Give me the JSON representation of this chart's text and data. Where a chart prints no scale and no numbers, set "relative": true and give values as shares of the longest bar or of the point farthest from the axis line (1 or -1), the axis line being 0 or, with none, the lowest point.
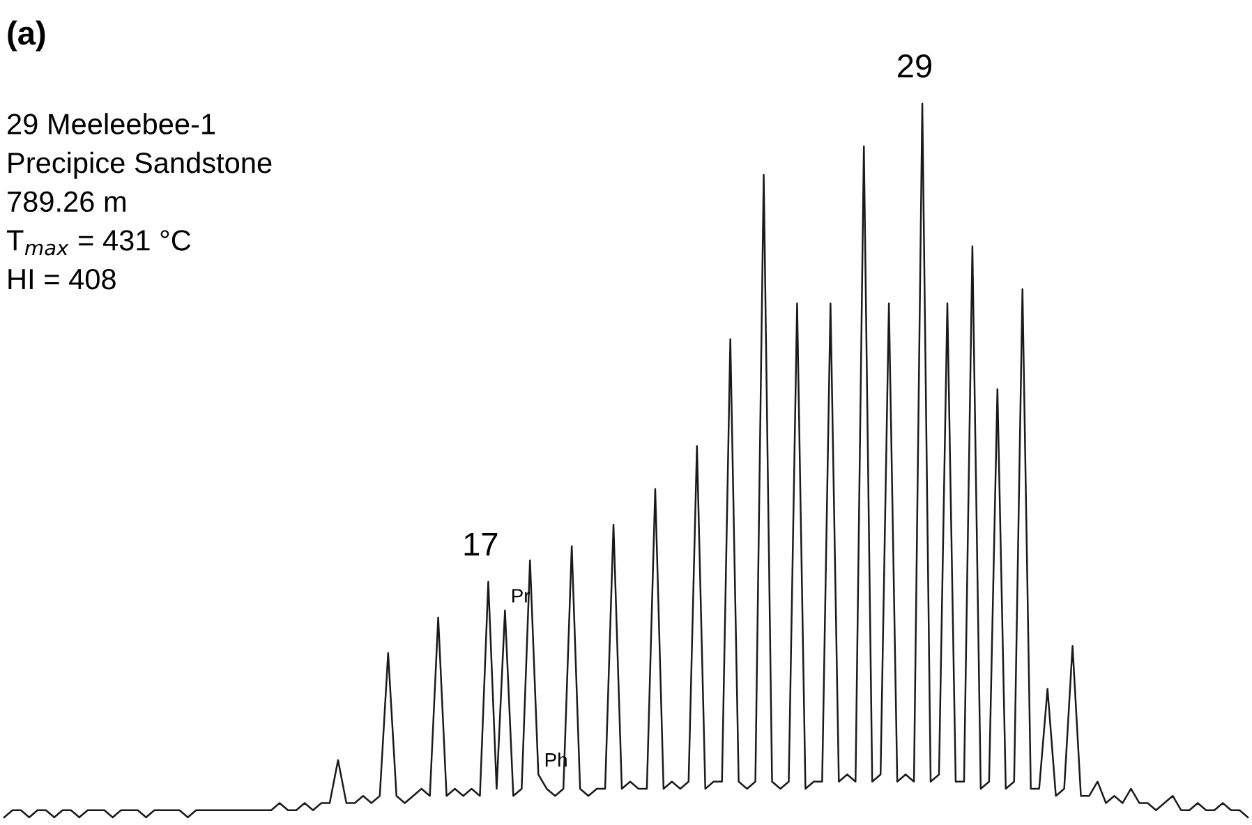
{
  "chart_data": {
    "type": "line",
    "relative": true,
    "color": "#1a1a1a",
    "marker": "none",
    "line_style": "solid",
    "grid": false,
    "legend": false,
    "tick_labels": false,
    "categories": [
      null,
      null,
      null,
      null,
      null,
      null,
      null,
      null,
      null,
      null,
      null,
      null,
      null,
      null,
      null,
      null,
      null,
      null,
      null,
      null,
      null,
      null,
      null,
      null,
      null,
      null,
      null,
      null,
      null,
      null,
      null,
      null,
      null,
      null,
      null,
      null,
      null,
      null,
      null,
      null,
      null,
      null,
      null,
      null,
      null,
      null,
      null,
      null,
      null,
      null,
      null,
      null,
      null,
      null,
      null,
      null,
      null,
      null,
      null,
      null,
      null,
      null,
      null,
      null,
      null,
      null,
      null,
      null,
      null,
      null,
      null,
      null,
      null,
      null,
      null,
      null,
      null,
      null,
      null,
      null,
      null,
      null,
      null,
      null,
      null,
      null,
      null,
      null,
      null,
      null,
      null,
      null,
      null,
      null,
      null,
      null,
      null,
      null,
      null,
      null,
      null,
      null,
      null,
      null,
      null,
      null,
      null,
      null,
      null,
      null,
      null,
      null,
      null,
      null,
      null,
      null,
      null,
      null,
      null,
      null,
      null,
      null,
      null,
      null,
      null,
      null,
      null,
      null,
      null,
      null,
      null,
      null,
      null,
      null,
      null,
      null,
      null,
      null,
      null,
      null,
      null,
      null,
      null,
      null,
      null,
      null,
      null,
      null,
      null,
      null
    ],
    "values": [
      0,
      0.01,
      0.01,
      0,
      0.01,
      0.01,
      0,
      0.01,
      0.01,
      0,
      0.01,
      0.01,
      0.01,
      0,
      0.01,
      0.01,
      0.01,
      0,
      0.01,
      0.01,
      0.01,
      0.01,
      0,
      0.01,
      0.01,
      0.01,
      0.01,
      0.01,
      0.01,
      0.01,
      0.01,
      0.01,
      0.01,
      0.02,
      0.01,
      0.01,
      0.02,
      0.01,
      0.02,
      0.02,
      0.08,
      0.02,
      0.02,
      0.03,
      0.02,
      0.03,
      0.23,
      0.03,
      0.02,
      0.03,
      0.04,
      0.03,
      0.28,
      0.03,
      0.04,
      0.03,
      0.04,
      0.03,
      0.33,
      0.04,
      0.29,
      0.03,
      0.04,
      0.36,
      0.06,
      0.04,
      0.03,
      0.04,
      0.38,
      0.04,
      0.03,
      0.04,
      0.04,
      0.41,
      0.04,
      0.05,
      0.04,
      0.04,
      0.46,
      0.04,
      0.05,
      0.04,
      0.05,
      0.52,
      0.04,
      0.05,
      0.05,
      0.67,
      0.05,
      0.04,
      0.05,
      0.9,
      0.05,
      0.04,
      0.05,
      0.72,
      0.04,
      0.05,
      0.05,
      0.72,
      0.05,
      0.06,
      0.05,
      0.94,
      0.05,
      0.06,
      0.72,
      0.05,
      0.06,
      0.05,
      1.0,
      0.05,
      0.06,
      0.72,
      0.05,
      0.05,
      0.8,
      0.04,
      0.05,
      0.6,
      0.04,
      0.05,
      0.74,
      0.04,
      0.04,
      0.18,
      0.03,
      0.04,
      0.24,
      0.03,
      0.03,
      0.05,
      0.02,
      0.03,
      0.02,
      0.04,
      0.02,
      0.02,
      0.01,
      0.02,
      0.03,
      0.01,
      0.01,
      0.02,
      0.01,
      0.01,
      0.02,
      0.01,
      0.01,
      0
    ],
    "annotations": [
      "(a)",
      "29 Meeleebee-1",
      "Precipice Sandstone",
      "789.26 m",
      "T$_{max}$ = 431 °C",
      "HI = 408",
      {
        "text": "29",
        "y": 1.0
      },
      {
        "text": "17",
        "y": 0.33
      },
      {
        "text": "Pr",
        "y": 0.29
      },
      {
        "text": "Ph",
        "y": 0.06
      }
    ]
  }
}
